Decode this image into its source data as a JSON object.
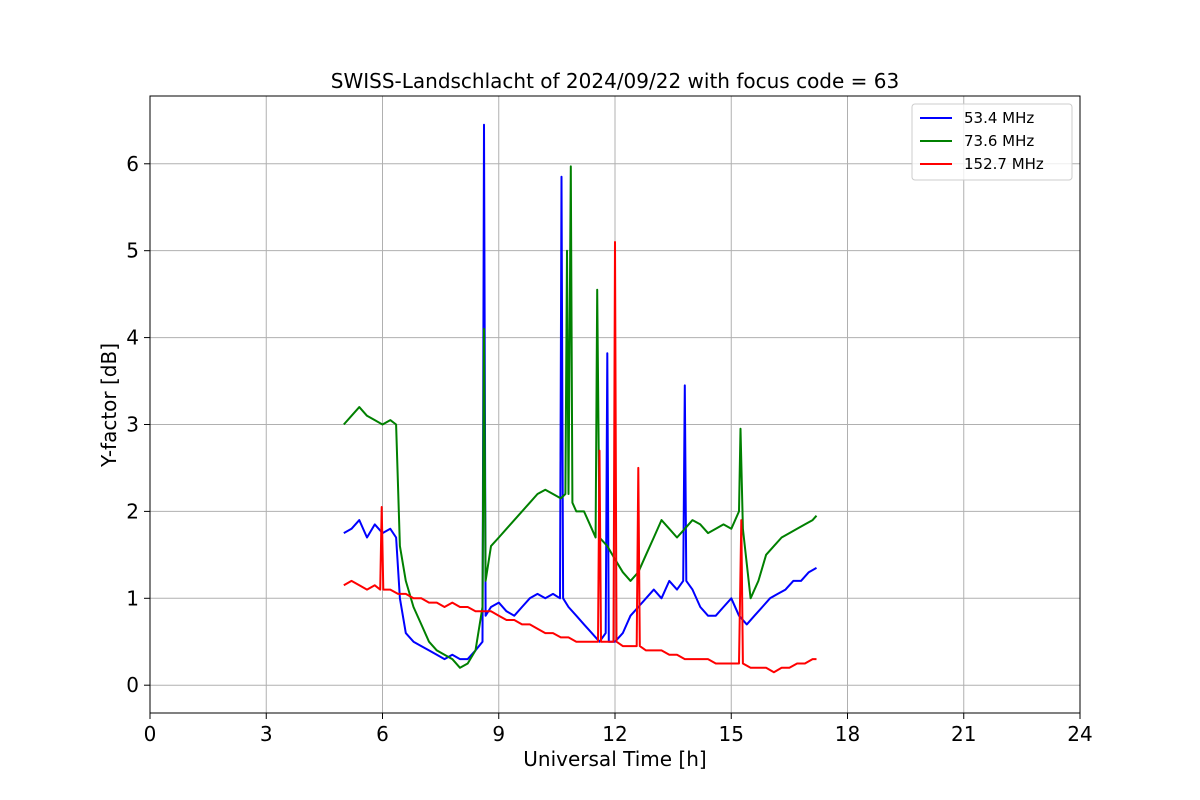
{
  "chart_data": {
    "type": "line",
    "title": "SWISS-Landschlacht of 2024/09/22 with focus code = 63",
    "xlabel": "Universal Time [h]",
    "ylabel": "Y-factor [dB]",
    "xlim": [
      0,
      24
    ],
    "ylim": [
      -0.32,
      6.78
    ],
    "xticks": [
      0,
      3,
      6,
      9,
      12,
      15,
      18,
      21,
      24
    ],
    "yticks": [
      0,
      1,
      2,
      3,
      4,
      5,
      6
    ],
    "grid": true,
    "legend_position": "top-right",
    "series": [
      {
        "name": "53.4 MHz",
        "color": "#0000ff",
        "x": [
          5.0,
          5.2,
          5.4,
          5.6,
          5.8,
          6.0,
          6.2,
          6.35,
          6.45,
          6.6,
          6.8,
          7.0,
          7.2,
          7.4,
          7.6,
          7.8,
          8.0,
          8.2,
          8.4,
          8.58,
          8.62,
          8.66,
          8.8,
          9.0,
          9.2,
          9.4,
          9.6,
          9.8,
          10.0,
          10.2,
          10.4,
          10.58,
          10.62,
          10.66,
          10.8,
          11.0,
          11.2,
          11.4,
          11.6,
          11.76,
          11.8,
          11.84,
          12.0,
          12.2,
          12.4,
          12.6,
          12.8,
          13.0,
          13.2,
          13.4,
          13.6,
          13.76,
          13.8,
          13.84,
          14.0,
          14.2,
          14.4,
          14.6,
          14.8,
          15.0,
          15.2,
          15.4,
          15.6,
          15.8,
          16.0,
          16.2,
          16.4,
          16.6,
          16.8,
          17.0,
          17.2
        ],
        "y": [
          1.75,
          1.8,
          1.9,
          1.7,
          1.85,
          1.75,
          1.8,
          1.7,
          1.0,
          0.6,
          0.5,
          0.45,
          0.4,
          0.35,
          0.3,
          0.35,
          0.3,
          0.3,
          0.4,
          0.5,
          6.45,
          0.8,
          0.9,
          0.95,
          0.85,
          0.8,
          0.9,
          1.0,
          1.05,
          1.0,
          1.05,
          1.0,
          5.85,
          1.0,
          0.9,
          0.8,
          0.7,
          0.6,
          0.5,
          0.6,
          3.82,
          0.5,
          0.5,
          0.6,
          0.8,
          0.9,
          1.0,
          1.1,
          1.0,
          1.2,
          1.1,
          1.2,
          3.45,
          1.2,
          1.1,
          0.9,
          0.8,
          0.8,
          0.9,
          1.0,
          0.8,
          0.7,
          0.8,
          0.9,
          1.0,
          1.05,
          1.1,
          1.2,
          1.2,
          1.3,
          1.35
        ]
      },
      {
        "name": "73.6 MHz",
        "color": "#008000",
        "x": [
          5.0,
          5.2,
          5.4,
          5.6,
          5.8,
          6.0,
          6.2,
          6.35,
          6.45,
          6.6,
          6.8,
          7.0,
          7.2,
          7.4,
          7.6,
          7.8,
          8.0,
          8.2,
          8.4,
          8.58,
          8.62,
          8.66,
          8.8,
          9.0,
          9.2,
          9.4,
          9.6,
          9.8,
          10.0,
          10.2,
          10.4,
          10.6,
          10.72,
          10.76,
          10.8,
          10.86,
          10.9,
          11.0,
          11.2,
          11.4,
          11.5,
          11.54,
          11.6,
          11.8,
          12.0,
          12.2,
          12.4,
          12.6,
          12.8,
          13.0,
          13.2,
          13.4,
          13.6,
          13.8,
          14.0,
          14.2,
          14.4,
          14.6,
          14.8,
          15.0,
          15.2,
          15.24,
          15.3,
          15.5,
          15.7,
          15.9,
          16.1,
          16.3,
          16.5,
          16.7,
          16.9,
          17.1,
          17.2
        ],
        "y": [
          3.0,
          3.1,
          3.2,
          3.1,
          3.05,
          3.0,
          3.05,
          3.0,
          1.6,
          1.2,
          0.9,
          0.7,
          0.5,
          0.4,
          0.35,
          0.3,
          0.2,
          0.25,
          0.4,
          0.9,
          4.1,
          1.2,
          1.6,
          1.7,
          1.8,
          1.9,
          2.0,
          2.1,
          2.2,
          2.25,
          2.2,
          2.15,
          2.2,
          5.0,
          2.2,
          5.97,
          2.1,
          2.0,
          2.0,
          1.8,
          1.7,
          4.55,
          1.7,
          1.6,
          1.45,
          1.3,
          1.2,
          1.3,
          1.5,
          1.7,
          1.9,
          1.8,
          1.7,
          1.8,
          1.9,
          1.85,
          1.75,
          1.8,
          1.85,
          1.8,
          2.0,
          2.95,
          1.8,
          1.0,
          1.2,
          1.5,
          1.6,
          1.7,
          1.75,
          1.8,
          1.85,
          1.9,
          1.95
        ]
      },
      {
        "name": "152.7 MHz",
        "color": "#ff0000",
        "x": [
          5.0,
          5.2,
          5.4,
          5.6,
          5.8,
          5.94,
          5.98,
          6.02,
          6.2,
          6.4,
          6.6,
          6.8,
          7.0,
          7.2,
          7.4,
          7.6,
          7.8,
          8.0,
          8.2,
          8.4,
          8.6,
          8.8,
          9.0,
          9.2,
          9.4,
          9.6,
          9.8,
          10.0,
          10.2,
          10.4,
          10.6,
          10.8,
          11.0,
          11.2,
          11.4,
          11.56,
          11.6,
          11.64,
          11.8,
          11.96,
          12.0,
          12.04,
          12.2,
          12.4,
          12.56,
          12.6,
          12.64,
          12.8,
          13.0,
          13.2,
          13.4,
          13.6,
          13.8,
          14.0,
          14.2,
          14.4,
          14.6,
          14.8,
          15.0,
          15.2,
          15.26,
          15.3,
          15.5,
          15.7,
          15.9,
          16.1,
          16.3,
          16.5,
          16.7,
          16.9,
          17.1,
          17.2
        ],
        "y": [
          1.15,
          1.2,
          1.15,
          1.1,
          1.15,
          1.1,
          2.05,
          1.1,
          1.1,
          1.05,
          1.05,
          1.0,
          1.0,
          0.95,
          0.95,
          0.9,
          0.95,
          0.9,
          0.9,
          0.85,
          0.85,
          0.85,
          0.8,
          0.75,
          0.75,
          0.7,
          0.7,
          0.65,
          0.6,
          0.6,
          0.55,
          0.55,
          0.5,
          0.5,
          0.5,
          0.5,
          2.7,
          0.5,
          0.5,
          0.5,
          5.1,
          0.5,
          0.45,
          0.45,
          0.45,
          2.5,
          0.45,
          0.4,
          0.4,
          0.4,
          0.35,
          0.35,
          0.3,
          0.3,
          0.3,
          0.3,
          0.25,
          0.25,
          0.25,
          0.25,
          1.9,
          0.25,
          0.2,
          0.2,
          0.2,
          0.15,
          0.2,
          0.2,
          0.25,
          0.25,
          0.3,
          0.3
        ]
      }
    ]
  }
}
